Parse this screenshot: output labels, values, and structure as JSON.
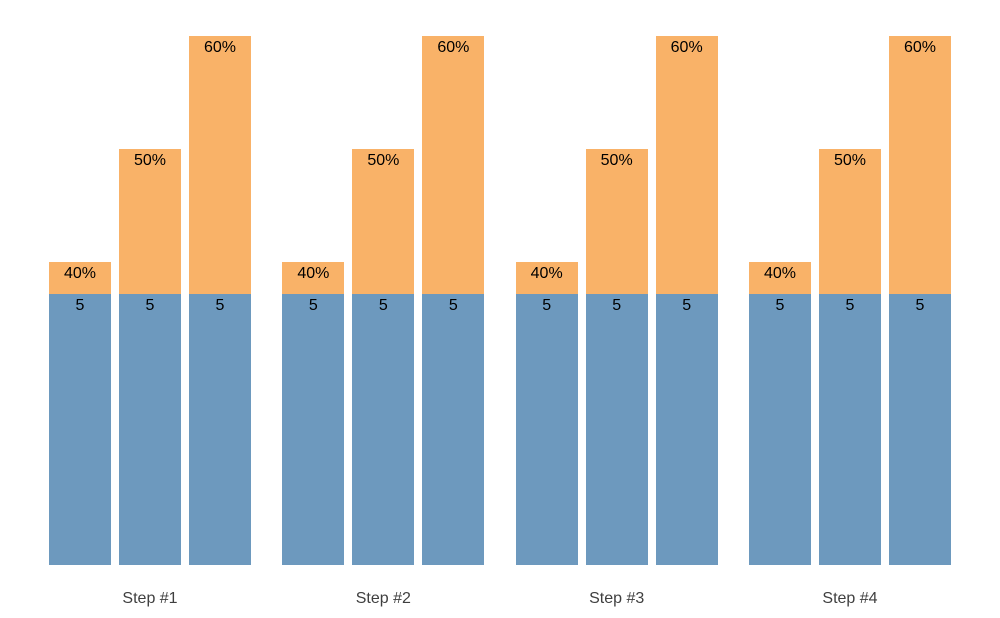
{
  "chart_data": {
    "type": "bar",
    "variant": "grouped-stacked",
    "title": "",
    "xlabel": "",
    "ylabel": "",
    "grid": false,
    "legend_position": "none",
    "axes_visible": false,
    "categories": [
      "Step #1",
      "Step #2",
      "Step #3",
      "Step #4"
    ],
    "bars_per_group": [
      {
        "base_value": 5,
        "base_label": "5",
        "percent_value": 40,
        "percent_label": "40%"
      },
      {
        "base_value": 5,
        "base_label": "5",
        "percent_value": 50,
        "percent_label": "50%"
      },
      {
        "base_value": 5,
        "base_label": "5",
        "percent_value": 60,
        "percent_label": "60%"
      }
    ],
    "note_series": [
      {
        "name": "base-segment",
        "values": [
          5,
          5,
          5
        ],
        "repeated_for_every_category": true
      },
      {
        "name": "percent-segment",
        "values": [
          40,
          50,
          60
        ],
        "repeated_for_every_category": true
      }
    ]
  },
  "colors": {
    "base_segment": "#6d99be",
    "percent_segment": "#f9b268",
    "bar_label": "#000000",
    "category_label": "#3f3f3f",
    "background": "#ffffff"
  }
}
